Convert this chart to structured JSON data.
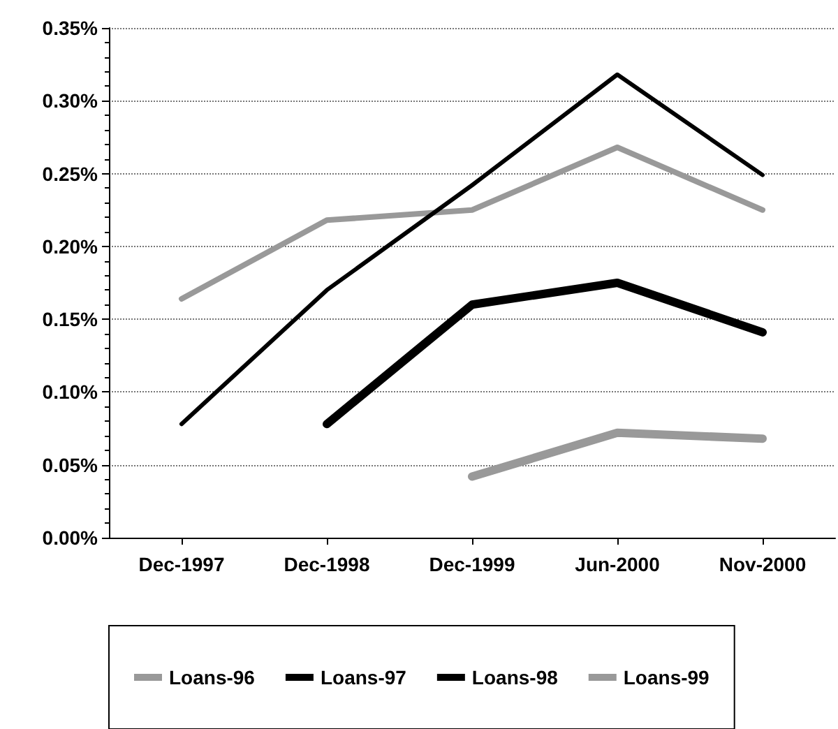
{
  "chart_data": {
    "type": "line",
    "categories": [
      "Dec-1997",
      "Dec-1998",
      "Dec-1999",
      "Jun-2000",
      "Nov-2000"
    ],
    "series": [
      {
        "name": "Loans-96",
        "color": "#999999",
        "values": [
          0.164,
          0.218,
          0.225,
          0.268,
          0.225
        ]
      },
      {
        "name": "Loans-97",
        "color": "#000000",
        "values": [
          0.078,
          0.17,
          0.242,
          0.318,
          0.249
        ]
      },
      {
        "name": "Loans-98",
        "color": "#000000",
        "values": [
          null,
          0.078,
          0.16,
          0.175,
          0.141
        ]
      },
      {
        "name": "Loans-99",
        "color": "#999999",
        "values": [
          null,
          null,
          0.042,
          0.072,
          0.068
        ]
      }
    ],
    "ylim": [
      0,
      0.35
    ],
    "yticks": [
      {
        "value": 0,
        "label": "0.00%"
      },
      {
        "value": 0.05,
        "label": "0.05%"
      },
      {
        "value": 0.1,
        "label": "0.10%"
      },
      {
        "value": 0.15,
        "label": "0.15%"
      },
      {
        "value": 0.2,
        "label": "0.20%"
      },
      {
        "value": 0.25,
        "label": "0.25%"
      },
      {
        "value": 0.3,
        "label": "0.30%"
      },
      {
        "value": 0.35,
        "label": "0.35%"
      }
    ],
    "grid": "y",
    "legend": "bottom",
    "marker": "none",
    "line_style": "solid"
  }
}
